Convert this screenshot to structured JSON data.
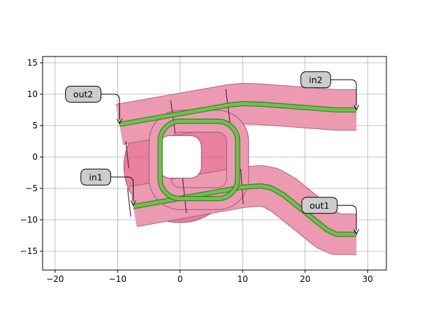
{
  "chart_data": {
    "type": "diagram",
    "title": "",
    "xlabel": "",
    "ylabel": "",
    "xlim": [
      -22,
      33
    ],
    "ylim": [
      -18,
      16
    ],
    "grid": true,
    "x_ticks": [
      -20,
      -10,
      0,
      10,
      20,
      30
    ],
    "y_ticks": [
      -15,
      -10,
      -5,
      0,
      5,
      10,
      15
    ],
    "x_tick_labels": [
      "−20",
      "−10",
      "0",
      "10",
      "20",
      "30"
    ],
    "y_tick_labels": [
      "−15",
      "−10",
      "−5",
      "0",
      "5",
      "10",
      "15"
    ],
    "colors": {
      "cladding": "#ec9ab2",
      "cladding_edge": "#9e5a73",
      "ring_disk": "#e2557f",
      "core": "#6cc24a",
      "core_edge": "#3f7a2c",
      "grid": "#b0b0b0",
      "label_box": "#cccccc"
    },
    "ports": [
      {
        "name": "in1",
        "x": -7.5,
        "y": -7.7,
        "label_x": -13.5,
        "label_y": -3.2
      },
      {
        "name": "in2",
        "x": 28.2,
        "y": 7.5,
        "label_x": 21.7,
        "label_y": 12.3
      },
      {
        "name": "out1",
        "x": 28.2,
        "y": -12.3,
        "label_x": 22.3,
        "label_y": -7.7
      },
      {
        "name": "out2",
        "x": -9.7,
        "y": 5.3,
        "label_x": -15.5,
        "label_y": 10.0
      }
    ],
    "top_bus_core": [
      [
        -9.7,
        5.2
      ],
      [
        8.0,
        8.3
      ],
      [
        10.0,
        8.5
      ],
      [
        13.0,
        8.4
      ],
      [
        25.0,
        7.5
      ],
      [
        28.2,
        7.5
      ]
    ],
    "bottom_bus_core": [
      [
        -7.5,
        -7.9
      ],
      [
        10.0,
        -4.8
      ],
      [
        13.0,
        -4.6
      ],
      [
        14.5,
        -4.9
      ],
      [
        16.5,
        -6.0
      ],
      [
        23.5,
        -11.6
      ],
      [
        25.0,
        -12.3
      ],
      [
        28.2,
        -12.3
      ]
    ],
    "ring_core_center": [
      3.0,
      -0.5
    ],
    "ring_core_half_size": [
      6.2,
      6.2
    ],
    "ring_disk_center": [
      0.0,
      -1.5
    ],
    "ring_disk_radius": 9.0,
    "ring_hole_center": [
      0.0,
      0.0
    ],
    "ring_hole_half_size": [
      3.4,
      3.4
    ],
    "segment_cuts": [
      [
        [
          -1.5,
          9.0
        ],
        [
          -0.8,
          3.8
        ]
      ],
      [
        [
          7.3,
          10.8
        ],
        [
          8.0,
          5.4
        ]
      ],
      [
        [
          -8.7,
          2.5
        ],
        [
          -8.2,
          -1.8
        ]
      ],
      [
        [
          -8.4,
          -5.0
        ],
        [
          -7.9,
          -9.5
        ]
      ],
      [
        [
          0.4,
          -3.4
        ],
        [
          1.0,
          -8.9
        ]
      ],
      [
        [
          9.7,
          -1.9
        ],
        [
          10.1,
          -7.5
        ]
      ]
    ]
  }
}
